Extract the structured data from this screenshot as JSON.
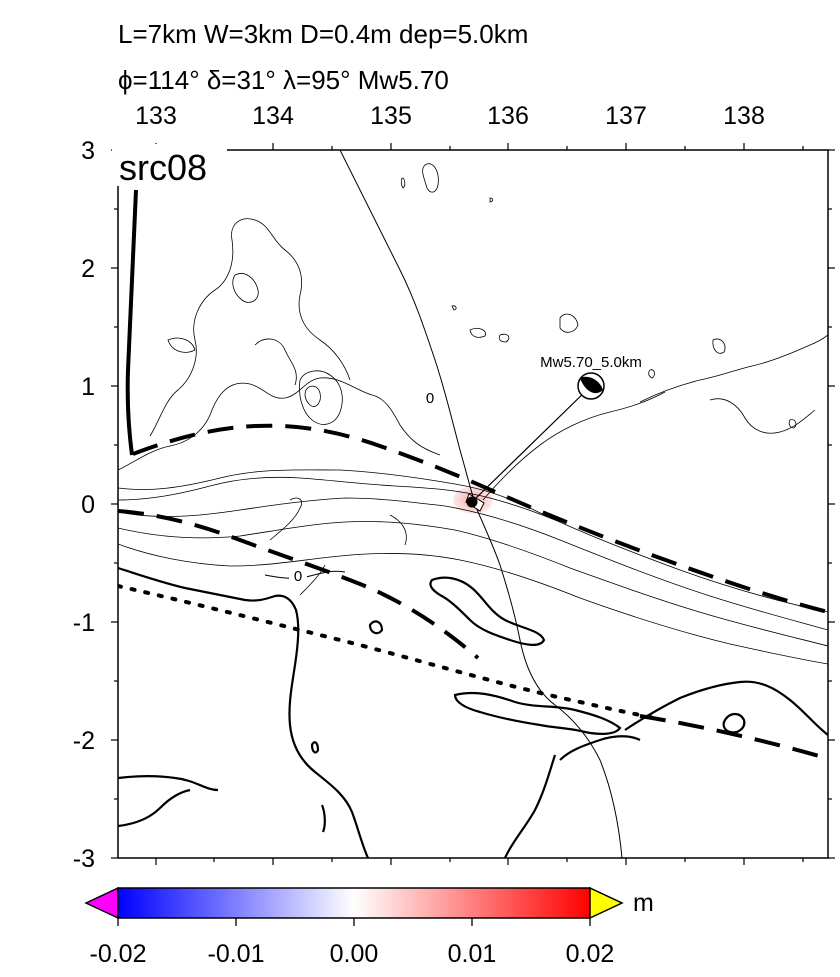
{
  "header": {
    "line1": "L=7km W=3km D=0.4m dep=5.0km",
    "line2": "ϕ=114° δ=31° λ=95° Mw5.70"
  },
  "panel_label": "src08",
  "top_ticks": [
    "133",
    "134",
    "135",
    "136",
    "137",
    "138"
  ],
  "left_ticks": [
    "3",
    "2",
    "1",
    "0",
    "-1",
    "-2",
    "-3"
  ],
  "contour_labels": [
    "0",
    "0"
  ],
  "mechanism_label": "Mw5.70_5.0km",
  "colorbar": {
    "unit": "m",
    "ticks": [
      "-0.02",
      "-0.01",
      "0.00",
      "0.01",
      "0.02"
    ],
    "colors": {
      "low": "#0000ff",
      "mid": "#ffffff",
      "high": "#ff0000",
      "under": "#ff00ff",
      "over": "#ffff00"
    }
  },
  "chart_data": {
    "type": "map",
    "x_ticks": [
      133,
      134,
      135,
      136,
      137,
      138
    ],
    "y_ticks": [
      3,
      2,
      1,
      0,
      -1,
      -2,
      -3
    ],
    "color_range": [
      -0.02,
      0.02
    ],
    "source": {
      "L_km": 7,
      "W_km": 3,
      "D_m": 0.4,
      "depth_km": 5.0,
      "strike_deg": 114,
      "dip_deg": 31,
      "rake_deg": 95,
      "Mw": 5.7
    }
  }
}
